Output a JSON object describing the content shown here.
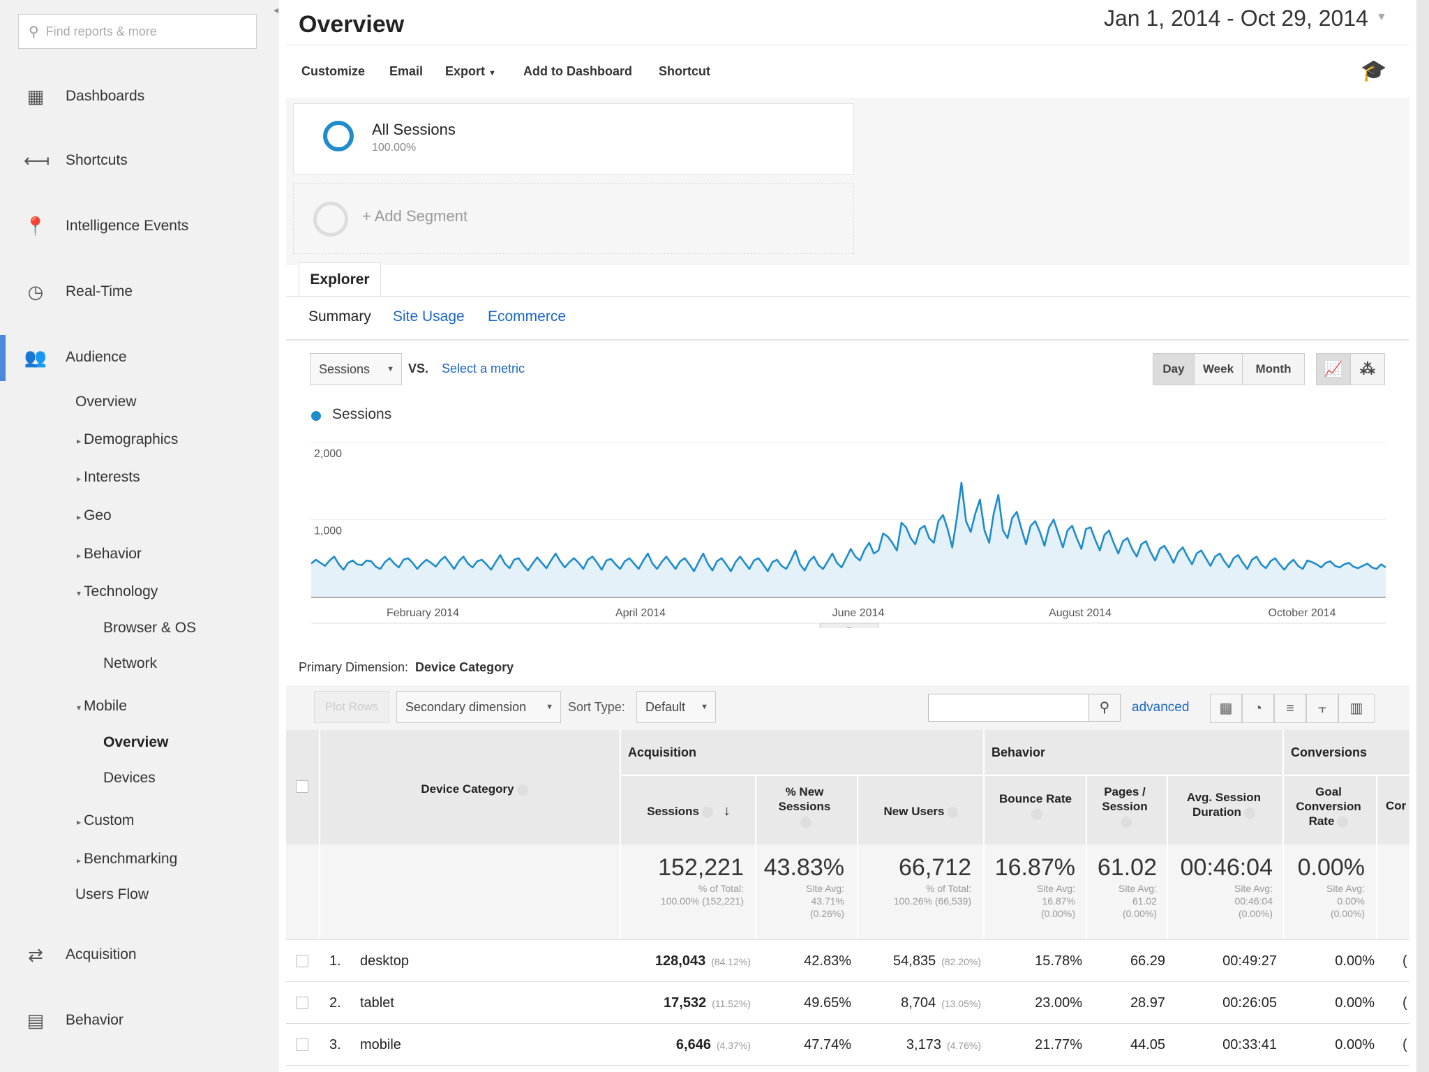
{
  "sidebar": {
    "search_placeholder": "Find reports & more",
    "main_items": [
      {
        "label": "Dashboards",
        "icon": "grid-icon"
      },
      {
        "label": "Shortcuts",
        "icon": "arrows-icon"
      },
      {
        "label": "Intelligence Events",
        "icon": "pin-icon"
      },
      {
        "label": "Real-Time",
        "icon": "clock-icon"
      },
      {
        "label": "Audience",
        "icon": "people-icon"
      },
      {
        "label": "Acquisition",
        "icon": "acquisition-icon"
      },
      {
        "label": "Behavior",
        "icon": "behavior-icon"
      }
    ],
    "audience_sub": {
      "overview": "Overview",
      "demographics": "Demographics",
      "interests": "Interests",
      "geo": "Geo",
      "behavior": "Behavior",
      "technology": "Technology",
      "browser_os": "Browser & OS",
      "network": "Network",
      "mobile": "Mobile",
      "mobile_overview": "Overview",
      "devices": "Devices",
      "custom": "Custom",
      "benchmarking": "Benchmarking",
      "users_flow": "Users Flow"
    }
  },
  "header": {
    "title": "Overview",
    "date_range": "Jan 1, 2014 - Oct 29, 2014"
  },
  "toolbar": {
    "customize": "Customize",
    "email": "Email",
    "export": "Export",
    "add_to_dashboard": "Add to Dashboard",
    "shortcut": "Shortcut"
  },
  "segments": {
    "all_sessions": "All Sessions",
    "all_sessions_pct": "100.00%",
    "add_segment": "+ Add Segment"
  },
  "explorer": {
    "tab": "Explorer",
    "subtabs": [
      "Summary",
      "Site Usage",
      "Ecommerce"
    ],
    "metric": "Sessions",
    "vs": "VS.",
    "select_metric": "Select a metric",
    "periods": [
      "Day",
      "Week",
      "Month"
    ],
    "active_period": "Day"
  },
  "chart_data": {
    "type": "line",
    "series": [
      {
        "name": "Sessions",
        "values": [
          430,
          480,
          440,
          400,
          470,
          520,
          420,
          350,
          440,
          470,
          420,
          410,
          470,
          460,
          390,
          360,
          450,
          500,
          430,
          380,
          480,
          500,
          440,
          360,
          430,
          480,
          440,
          390,
          470,
          520,
          440,
          360,
          460,
          520,
          430,
          380,
          460,
          480,
          420,
          350,
          450,
          540,
          430,
          370,
          480,
          500,
          410,
          340,
          430,
          510,
          440,
          370,
          470,
          560,
          460,
          380,
          450,
          500,
          440,
          360,
          480,
          520,
          440,
          350,
          470,
          490,
          420,
          360,
          460,
          500,
          430,
          360,
          470,
          560,
          430,
          360,
          450,
          520,
          440,
          360,
          460,
          500,
          420,
          330,
          450,
          560,
          430,
          340,
          460,
          500,
          420,
          330,
          450,
          520,
          440,
          360,
          470,
          500,
          420,
          330,
          450,
          480,
          400,
          360,
          470,
          600,
          420,
          340,
          460,
          520,
          410,
          360,
          460,
          560,
          440,
          380,
          500,
          620,
          520,
          470,
          610,
          700,
          560,
          600,
          820,
          780,
          700,
          600,
          960,
          900,
          760,
          680,
          880,
          920,
          760,
          700,
          980,
          1060,
          880,
          640,
          1020,
          1480,
          980,
          840,
          1080,
          1260,
          860,
          700,
          1080,
          1320,
          860,
          760,
          1020,
          1100,
          880,
          680,
          920,
          980,
          840,
          660,
          900,
          1000,
          820,
          640,
          860,
          920,
          760,
          620,
          880,
          900,
          740,
          600,
          800,
          860,
          700,
          560,
          720,
          760,
          620,
          520,
          680,
          720,
          580,
          470,
          620,
          660,
          560,
          440,
          580,
          640,
          520,
          420,
          560,
          600,
          500,
          400,
          520,
          560,
          460,
          380,
          500,
          540,
          440,
          360,
          480,
          520,
          420,
          370,
          460,
          500,
          420,
          350,
          430,
          480,
          400,
          360,
          470,
          450,
          420,
          380,
          440,
          460,
          400,
          380,
          420,
          440,
          390,
          370,
          400,
          430,
          380,
          360,
          420,
          380
        ]
      }
    ],
    "x_tick_labels": [
      "February 2014",
      "April 2014",
      "June 2014",
      "August 2014",
      "October 2014"
    ],
    "y_tick_labels": [
      "2,000",
      "1,000"
    ],
    "ylim": [
      0,
      2000
    ],
    "legend": "top-left",
    "grid": true,
    "colors": {
      "line": "#1f8ccb",
      "fill": "#e4f1f9"
    }
  },
  "table": {
    "primary_dimension_label": "Primary Dimension:",
    "primary_dimension": "Device Category",
    "plot_rows": "Plot Rows",
    "secondary_dimension": "Secondary dimension",
    "sort_type_label": "Sort Type:",
    "sort_type": "Default",
    "advanced": "advanced",
    "groups": {
      "acquisition": "Acquisition",
      "behavior": "Behavior",
      "conversions": "Conversions"
    },
    "columns": {
      "device_category": "Device Category",
      "sessions": "Sessions",
      "new_sessions": "% New Sessions",
      "new_users": "New Users",
      "bounce_rate": "Bounce Rate",
      "pages_session": "Pages / Session",
      "avg_duration": "Avg. Session Duration",
      "goal_conv": "Goal Conversion Rate",
      "cut": "Cor"
    },
    "totals": {
      "sessions": "152,221",
      "sessions_sub": "% of Total:\n100.00% (152,221)",
      "new_sessions": "43.83%",
      "new_sessions_sub": "Site Avg:\n43.71%\n(0.26%)",
      "new_users": "66,712",
      "new_users_sub": "% of Total:\n100.26% (66,539)",
      "bounce_rate": "16.87%",
      "bounce_rate_sub": "Site Avg:\n16.87%\n(0.00%)",
      "pages_session": "61.02",
      "pages_session_sub": "Site Avg:\n61.02\n(0.00%)",
      "avg_duration": "00:46:04",
      "avg_duration_sub": "Site Avg:\n00:46:04\n(0.00%)",
      "goal_conv": "0.00%",
      "goal_conv_sub": "Site Avg:\n0.00%\n(0.00%)"
    },
    "rows": [
      {
        "idx": "1.",
        "device": "desktop",
        "sessions": "128,043",
        "sessions_pct": "(84.12%)",
        "new_sessions": "42.83%",
        "new_users": "54,835",
        "new_users_pct": "(82.20%)",
        "bounce_rate": "15.78%",
        "pages_session": "66.29",
        "avg_duration": "00:49:27",
        "goal_conv": "0.00%",
        "cut": "("
      },
      {
        "idx": "2.",
        "device": "tablet",
        "sessions": "17,532",
        "sessions_pct": "(11.52%)",
        "new_sessions": "49.65%",
        "new_users": "8,704",
        "new_users_pct": "(13.05%)",
        "bounce_rate": "23.00%",
        "pages_session": "28.97",
        "avg_duration": "00:26:05",
        "goal_conv": "0.00%",
        "cut": "("
      },
      {
        "idx": "3.",
        "device": "mobile",
        "sessions": "6,646",
        "sessions_pct": "(4.37%)",
        "new_sessions": "47.74%",
        "new_users": "3,173",
        "new_users_pct": "(4.76%)",
        "bounce_rate": "21.77%",
        "pages_session": "44.05",
        "avg_duration": "00:33:41",
        "goal_conv": "0.00%",
        "cut": "("
      }
    ]
  }
}
